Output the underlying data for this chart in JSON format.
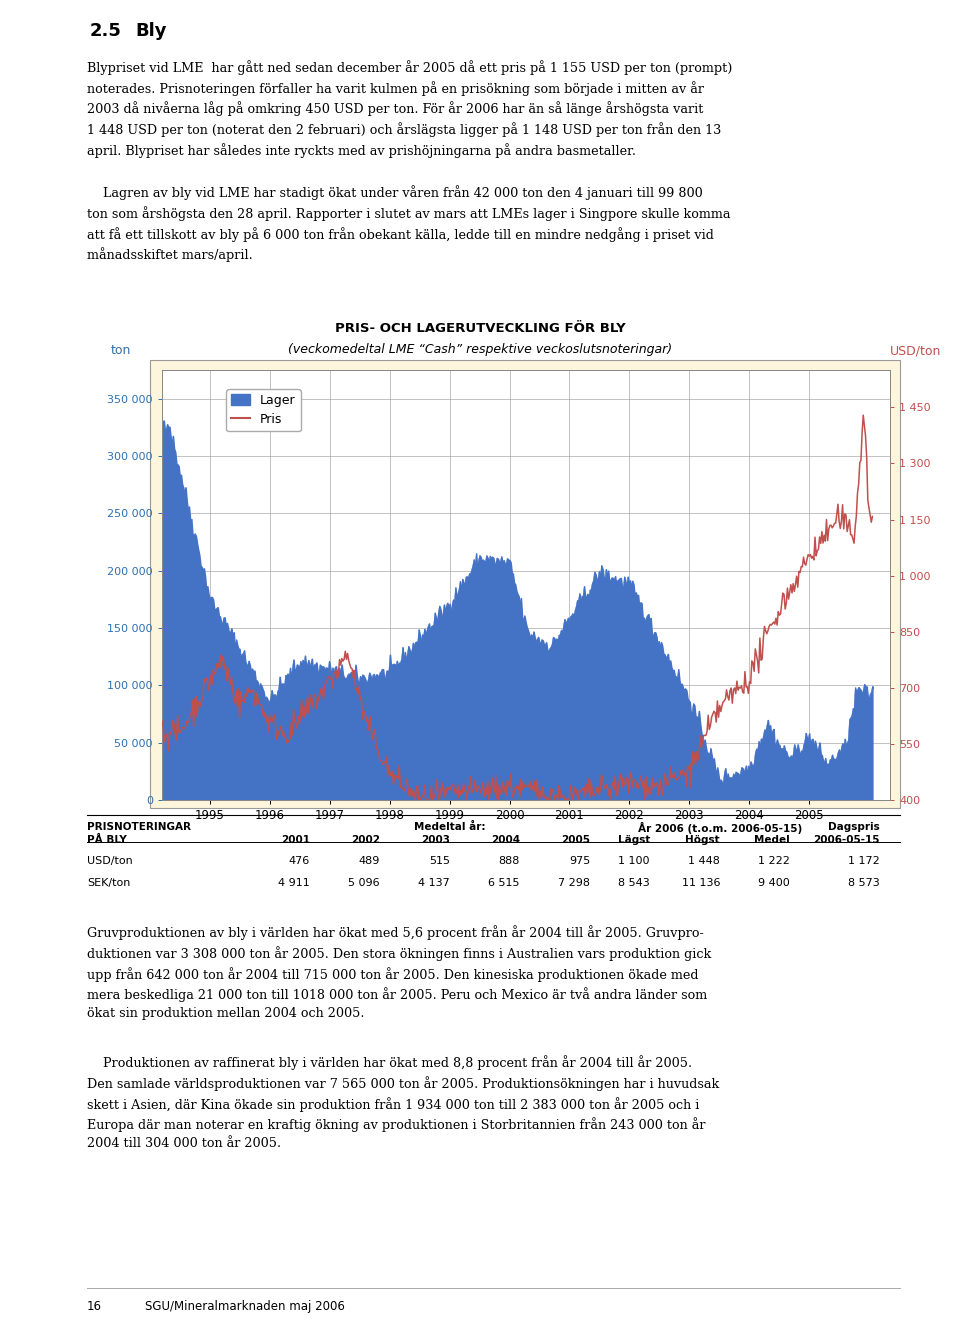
{
  "title": "PRIS- OCH LAGERUTVECKLING FÖR BLY",
  "subtitle": "(veckomedeltal LME “Cash” respektive veckoslutsnoteringar)",
  "heading_num": "2.5",
  "heading_text": "Bly",
  "background_color": "#ffffff",
  "chart_bg_color": "#fdf5dc",
  "chart_outer_bg": "#fdf5dc",
  "left_ylabel": "ton",
  "right_ylabel": "USD/ton",
  "y_left_ticks": [
    0,
    50000,
    100000,
    150000,
    200000,
    250000,
    300000,
    350000
  ],
  "y_left_labels": [
    "0",
    "50 000",
    "100 000",
    "150 000",
    "200 000",
    "250 000",
    "300 000",
    "350 000"
  ],
  "y_right_ticks": [
    400,
    550,
    700,
    850,
    1000,
    1150,
    1300,
    1450
  ],
  "y_right_labels": [
    "400",
    "550",
    "700",
    "850",
    "1 000",
    "1 150",
    "1 300",
    "1 450"
  ],
  "x_tick_labels": [
    "1995",
    "1996",
    "1997",
    "1998",
    "1999",
    "2000",
    "2001",
    "2002",
    "2003",
    "2004",
    "2005"
  ],
  "lager_color": "#4472c4",
  "pris_color": "#c0504d",
  "legend_lager": "Lager",
  "legend_pris": "Pris"
}
